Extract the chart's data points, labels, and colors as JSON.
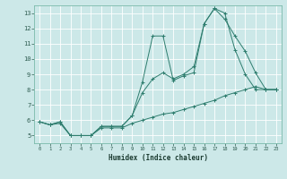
{
  "xlabel": "Humidex (Indice chaleur)",
  "background_color": "#cce8e8",
  "grid_color": "#aacccc",
  "line_color": "#2e7d6e",
  "xlim": [
    -0.5,
    23.5
  ],
  "ylim": [
    4.5,
    13.5
  ],
  "xticks": [
    0,
    1,
    2,
    3,
    4,
    5,
    6,
    7,
    8,
    9,
    10,
    11,
    12,
    13,
    14,
    15,
    16,
    17,
    18,
    19,
    20,
    21,
    22,
    23
  ],
  "yticks": [
    5,
    6,
    7,
    8,
    9,
    10,
    11,
    12,
    13
  ],
  "line1_x": [
    0,
    1,
    2,
    3,
    4,
    5,
    6,
    7,
    8,
    9,
    10,
    11,
    12,
    13,
    14,
    15,
    16,
    17,
    18,
    19,
    20,
    21,
    22,
    23
  ],
  "line1_y": [
    5.9,
    5.7,
    5.8,
    5.0,
    5.0,
    5.0,
    5.5,
    5.5,
    5.5,
    5.8,
    6.0,
    6.2,
    6.4,
    6.5,
    6.7,
    6.9,
    7.1,
    7.3,
    7.6,
    7.8,
    8.0,
    8.2,
    8.0,
    8.0
  ],
  "line2_x": [
    0,
    1,
    2,
    3,
    4,
    5,
    6,
    7,
    8,
    9,
    10,
    11,
    12,
    13,
    14,
    15,
    16,
    17,
    18,
    19,
    20,
    21,
    22,
    23
  ],
  "line2_y": [
    5.9,
    5.7,
    5.9,
    5.0,
    5.0,
    5.0,
    5.6,
    5.6,
    5.6,
    6.3,
    8.5,
    11.5,
    11.5,
    8.6,
    8.9,
    9.1,
    12.3,
    13.3,
    13.0,
    10.6,
    9.0,
    8.0,
    8.0,
    8.0
  ],
  "line3_x": [
    0,
    1,
    2,
    3,
    4,
    5,
    6,
    7,
    8,
    9,
    10,
    11,
    12,
    13,
    14,
    15,
    16,
    17,
    18,
    19,
    20,
    21,
    22,
    23
  ],
  "line3_y": [
    5.9,
    5.7,
    5.9,
    5.0,
    5.0,
    5.0,
    5.6,
    5.6,
    5.6,
    6.3,
    7.8,
    8.7,
    9.1,
    8.7,
    9.0,
    9.5,
    12.3,
    13.3,
    12.6,
    11.5,
    10.5,
    9.1,
    8.0,
    8.0
  ]
}
